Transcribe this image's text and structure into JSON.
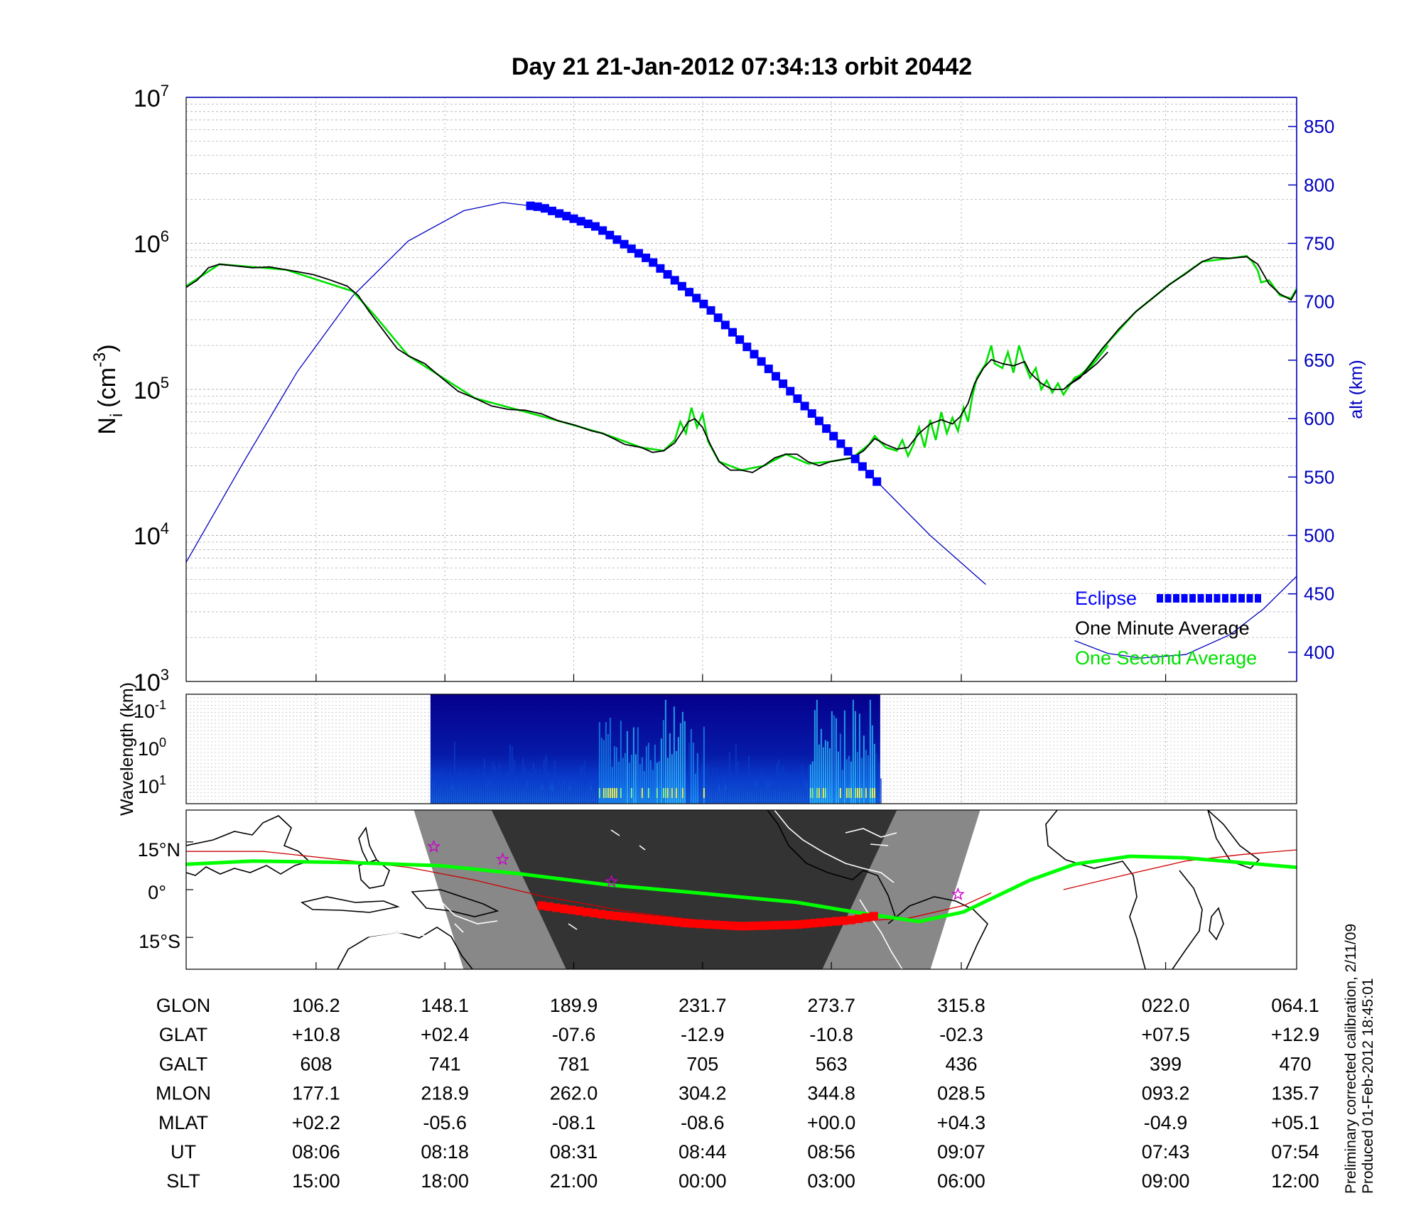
{
  "title": "Day 21  21-Jan-2012 07:34:13   orbit 20442",
  "side_note": {
    "line1": "Preliminary corrected calibration, 2/11/09",
    "line2": "Produced 01-Feb-2012 18:45:01"
  },
  "colors": {
    "one_second": "#00e000",
    "one_minute": "#000000",
    "altitude": "#0000c0",
    "eclipse": "#0000ff",
    "map_track": "#00ff00",
    "map_eclipse": "#ff0000",
    "map_dip": "#cc0000",
    "star": "#cc00cc",
    "spectro_bg": "#05008c"
  },
  "chart_data": [
    {
      "type": "line",
      "panel": "ion-density",
      "ylabel": "N",
      "ylabel_sub": "i",
      "ylabel_unit": "(cm",
      "ylabel_sup": "-3",
      "ylabel_close": ")",
      "yscale": "log",
      "ylim": [
        1000,
        10000000
      ],
      "yticks": [
        {
          "base": "10",
          "exp": "3"
        },
        {
          "base": "10",
          "exp": "4"
        },
        {
          "base": "10",
          "exp": "5"
        },
        {
          "base": "10",
          "exp": "6"
        },
        {
          "base": "10",
          "exp": "7"
        }
      ],
      "y2label": "alt (km)",
      "y2lim": [
        375,
        875
      ],
      "y2ticks": [
        "400",
        "450",
        "500",
        "550",
        "600",
        "650",
        "700",
        "750",
        "800",
        "850"
      ],
      "xlim": [
        0,
        1
      ],
      "grid": true,
      "legend": {
        "position": "bottom-right",
        "entries": [
          "Eclipse",
          "One Minute Average",
          "One Second Average"
        ]
      },
      "series_one_minute": [
        [
          0.0,
          500000
        ],
        [
          0.01,
          560000
        ],
        [
          0.02,
          680000
        ],
        [
          0.03,
          720000
        ],
        [
          0.045,
          700000
        ],
        [
          0.06,
          680000
        ],
        [
          0.075,
          690000
        ],
        [
          0.09,
          660000
        ],
        [
          0.1,
          640000
        ],
        [
          0.115,
          610000
        ],
        [
          0.13,
          560000
        ],
        [
          0.145,
          510000
        ],
        [
          0.155,
          440000
        ],
        [
          0.165,
          340000
        ],
        [
          0.18,
          240000
        ],
        [
          0.19,
          190000
        ],
        [
          0.2,
          170000
        ],
        [
          0.215,
          150000
        ],
        [
          0.23,
          120000
        ],
        [
          0.245,
          97000
        ],
        [
          0.26,
          87000
        ],
        [
          0.275,
          77000
        ],
        [
          0.29,
          73000
        ],
        [
          0.305,
          72000
        ],
        [
          0.32,
          68000
        ],
        [
          0.335,
          61000
        ],
        [
          0.35,
          57000
        ],
        [
          0.365,
          52000
        ],
        [
          0.375,
          50000
        ],
        [
          0.385,
          46000
        ],
        [
          0.395,
          42000
        ],
        [
          0.41,
          40000
        ],
        [
          0.42,
          37000
        ],
        [
          0.43,
          38000
        ],
        [
          0.44,
          43000
        ],
        [
          0.447,
          52000
        ],
        [
          0.452,
          60000
        ],
        [
          0.458,
          63000
        ],
        [
          0.465,
          55000
        ],
        [
          0.472,
          42000
        ],
        [
          0.48,
          32000
        ],
        [
          0.49,
          28000
        ],
        [
          0.5,
          28000
        ],
        [
          0.51,
          27000
        ],
        [
          0.52,
          30000
        ],
        [
          0.53,
          34000
        ],
        [
          0.54,
          36000
        ],
        [
          0.55,
          36000
        ],
        [
          0.56,
          32000
        ],
        [
          0.57,
          30000
        ],
        [
          0.58,
          32000
        ],
        [
          0.59,
          33000
        ],
        [
          0.6,
          34000
        ],
        [
          0.61,
          38000
        ],
        [
          0.62,
          46000
        ],
        [
          0.63,
          42000
        ],
        [
          0.64,
          39000
        ],
        [
          0.65,
          40000
        ],
        [
          0.66,
          50000
        ],
        [
          0.67,
          58000
        ],
        [
          0.68,
          62000
        ],
        [
          0.69,
          58000
        ],
        [
          0.697,
          65000
        ],
        [
          0.704,
          80000
        ],
        [
          0.71,
          110000
        ],
        [
          0.718,
          140000
        ],
        [
          0.725,
          160000
        ],
        [
          0.735,
          150000
        ],
        [
          0.745,
          145000
        ],
        [
          0.755,
          155000
        ],
        [
          0.76,
          130000
        ],
        [
          0.77,
          110000
        ],
        [
          0.78,
          100000
        ],
        [
          0.79,
          100000
        ],
        [
          0.8,
          115000
        ],
        [
          0.81,
          130000
        ],
        [
          0.82,
          150000
        ],
        [
          0.83,
          180000
        ]
      ],
      "series_one_minute_2": [
        [
          0.793,
          105000
        ],
        [
          0.805,
          120000
        ],
        [
          0.815,
          150000
        ],
        [
          0.825,
          190000
        ],
        [
          0.84,
          260000
        ],
        [
          0.855,
          340000
        ],
        [
          0.87,
          420000
        ],
        [
          0.885,
          520000
        ],
        [
          0.9,
          620000
        ],
        [
          0.915,
          750000
        ],
        [
          0.925,
          800000
        ],
        [
          0.94,
          790000
        ],
        [
          0.955,
          810000
        ],
        [
          0.965,
          720000
        ],
        [
          0.975,
          530000
        ],
        [
          0.985,
          450000
        ],
        [
          0.995,
          410000
        ],
        [
          1.0,
          480000
        ]
      ],
      "series_one_second": [
        [
          0.0,
          510000
        ],
        [
          0.03,
          720000
        ],
        [
          0.09,
          660000
        ],
        [
          0.15,
          470000
        ],
        [
          0.17,
          320000
        ],
        [
          0.2,
          170000
        ],
        [
          0.26,
          87000
        ],
        [
          0.3,
          72000
        ],
        [
          0.335,
          61000
        ],
        [
          0.375,
          50000
        ],
        [
          0.41,
          40000
        ],
        [
          0.43,
          38000
        ],
        [
          0.44,
          45000
        ],
        [
          0.445,
          60000
        ],
        [
          0.45,
          50000
        ],
        [
          0.455,
          75000
        ],
        [
          0.46,
          55000
        ],
        [
          0.465,
          68000
        ],
        [
          0.47,
          44000
        ],
        [
          0.48,
          32000
        ],
        [
          0.5,
          28000
        ],
        [
          0.52,
          30000
        ],
        [
          0.54,
          36000
        ],
        [
          0.56,
          31000
        ],
        [
          0.58,
          32000
        ],
        [
          0.6,
          34000
        ],
        [
          0.615,
          42000
        ],
        [
          0.62,
          48000
        ],
        [
          0.63,
          40000
        ],
        [
          0.64,
          38000
        ],
        [
          0.645,
          45000
        ],
        [
          0.65,
          35000
        ],
        [
          0.655,
          42000
        ],
        [
          0.66,
          55000
        ],
        [
          0.665,
          40000
        ],
        [
          0.67,
          62000
        ],
        [
          0.675,
          45000
        ],
        [
          0.68,
          70000
        ],
        [
          0.685,
          50000
        ],
        [
          0.69,
          64000
        ],
        [
          0.695,
          52000
        ],
        [
          0.7,
          75000
        ],
        [
          0.704,
          60000
        ],
        [
          0.708,
          90000
        ],
        [
          0.712,
          120000
        ],
        [
          0.72,
          150000
        ],
        [
          0.725,
          200000
        ],
        [
          0.728,
          150000
        ],
        [
          0.735,
          140000
        ],
        [
          0.74,
          180000
        ],
        [
          0.745,
          130000
        ],
        [
          0.75,
          200000
        ],
        [
          0.755,
          150000
        ],
        [
          0.76,
          120000
        ],
        [
          0.765,
          140000
        ],
        [
          0.77,
          100000
        ],
        [
          0.775,
          115000
        ],
        [
          0.78,
          95000
        ],
        [
          0.785,
          110000
        ],
        [
          0.79,
          92000
        ],
        [
          0.8,
          120000
        ],
        [
          0.81,
          130000
        ],
        [
          0.82,
          160000
        ],
        [
          0.83,
          200000
        ]
      ],
      "series_one_second_2": [
        [
          0.793,
          105000
        ],
        [
          0.81,
          135000
        ],
        [
          0.825,
          190000
        ],
        [
          0.855,
          340000
        ],
        [
          0.885,
          520000
        ],
        [
          0.915,
          750000
        ],
        [
          0.94,
          790000
        ],
        [
          0.955,
          820000
        ],
        [
          0.96,
          750000
        ],
        [
          0.965,
          650000
        ],
        [
          0.968,
          540000
        ],
        [
          0.975,
          560000
        ],
        [
          0.985,
          440000
        ],
        [
          0.995,
          420000
        ],
        [
          1.0,
          490000
        ]
      ],
      "altitude_km": [
        [
          0.0,
          477
        ],
        [
          0.05,
          560
        ],
        [
          0.1,
          640
        ],
        [
          0.15,
          705
        ],
        [
          0.2,
          752
        ],
        [
          0.25,
          778
        ],
        [
          0.285,
          785
        ],
        [
          0.32,
          781
        ],
        [
          0.37,
          764
        ],
        [
          0.42,
          734
        ],
        [
          0.47,
          695
        ],
        [
          0.52,
          647
        ],
        [
          0.57,
          598
        ],
        [
          0.62,
          548
        ],
        [
          0.67,
          500
        ],
        [
          0.72,
          458
        ],
        [
          0.77,
          425
        ],
        [
          0.8,
          410
        ],
        [
          0.83,
          399
        ],
        [
          0.86,
          395
        ],
        [
          0.9,
          398
        ],
        [
          0.94,
          415
        ],
        [
          0.97,
          437
        ],
        [
          1.0,
          465
        ]
      ],
      "altitude_gap": [
        0.725,
        0.795
      ],
      "eclipse_x": [
        0.31,
        0.625
      ]
    },
    {
      "type": "heatmap",
      "panel": "spectrogram",
      "ylabel": "Wavelength (km)",
      "yticks": [
        {
          "base": "10",
          "exp": "-1"
        },
        {
          "base": "10",
          "exp": "0"
        },
        {
          "base": "10",
          "exp": "1"
        }
      ],
      "x_range": [
        0.22,
        0.625
      ],
      "colormap": "jet"
    },
    {
      "type": "map",
      "panel": "ground-track",
      "yticks": [
        "15°N",
        "0°",
        "15°S"
      ],
      "ylim": [
        -25,
        25
      ],
      "xlim": [
        0,
        1
      ],
      "track_lat": [
        [
          0.0,
          8.0
        ],
        [
          0.06,
          9.0
        ],
        [
          0.15,
          8.5
        ],
        [
          0.23,
          7.5
        ],
        [
          0.3,
          5.0
        ],
        [
          0.38,
          1.5
        ],
        [
          0.46,
          -1.0
        ],
        [
          0.55,
          -4.0
        ],
        [
          0.61,
          -7.5
        ],
        [
          0.66,
          -10.0
        ],
        [
          0.7,
          -7.0
        ],
        [
          0.73,
          -2.0
        ],
        [
          0.76,
          3.0
        ],
        [
          0.8,
          8.0
        ],
        [
          0.85,
          10.5
        ],
        [
          0.9,
          10.0
        ],
        [
          0.95,
          8.5
        ],
        [
          1.0,
          7.0
        ]
      ],
      "eclipse_lat": [
        [
          0.32,
          -5.0
        ],
        [
          0.38,
          -8.0
        ],
        [
          0.45,
          -10.5
        ],
        [
          0.5,
          -11.5
        ],
        [
          0.55,
          -11.0
        ],
        [
          0.6,
          -9.5
        ],
        [
          0.625,
          -8.0
        ]
      ],
      "dip_equator_lat": [
        [
          0.0,
          12.0
        ],
        [
          0.07,
          12.0
        ],
        [
          0.15,
          9.0
        ],
        [
          0.2,
          7.0
        ],
        [
          0.26,
          3.0
        ],
        [
          0.32,
          -2.0
        ],
        [
          0.4,
          -7.0
        ],
        [
          0.47,
          -10.0
        ],
        [
          0.54,
          -11.0
        ],
        [
          0.6,
          -10.0
        ],
        [
          0.65,
          -9.0
        ],
        [
          0.7,
          -5.0
        ],
        [
          0.725,
          -1.0
        ]
      ],
      "dip_equator_lat_2": [
        [
          0.79,
          0.0
        ],
        [
          0.85,
          5.0
        ],
        [
          0.9,
          9.0
        ],
        [
          0.95,
          11.0
        ],
        [
          1.0,
          12.5
        ]
      ],
      "stars_lat": [
        [
          0.223,
          13.5
        ],
        [
          0.285,
          9.5
        ],
        [
          0.383,
          2.5
        ],
        [
          0.695,
          -1.5
        ]
      ],
      "night_x": [
        0.205,
        0.715
      ],
      "dark_x": [
        0.275,
        0.64
      ]
    }
  ],
  "footer_table": {
    "rows": [
      {
        "label": "GLON",
        "values": [
          "106.2",
          "148.1",
          "189.9",
          "231.7",
          "273.7",
          "315.8",
          "022.0",
          "064.1"
        ]
      },
      {
        "label": "GLAT",
        "values": [
          "+10.8",
          "+02.4",
          "-07.6",
          "-12.9",
          "-10.8",
          "-02.3",
          "+07.5",
          "+12.9"
        ]
      },
      {
        "label": "GALT",
        "values": [
          "608",
          "741",
          "781",
          "705",
          "563",
          "436",
          "399",
          "470"
        ]
      },
      {
        "label": "MLON",
        "values": [
          "177.1",
          "218.9",
          "262.0",
          "304.2",
          "344.8",
          "028.5",
          "093.2",
          "135.7"
        ]
      },
      {
        "label": "MLAT",
        "values": [
          "+02.2",
          "-05.6",
          "-08.1",
          "-08.6",
          "+00.0",
          "+04.3",
          "-04.9",
          "+05.1"
        ]
      },
      {
        "label": "UT",
        "values": [
          "08:06",
          "08:18",
          "08:31",
          "08:44",
          "08:56",
          "09:07",
          "07:43",
          "07:54"
        ]
      },
      {
        "label": "SLT",
        "values": [
          "15:00",
          "18:00",
          "21:00",
          "00:00",
          "03:00",
          "06:00",
          "09:00",
          "12:00"
        ]
      }
    ]
  }
}
